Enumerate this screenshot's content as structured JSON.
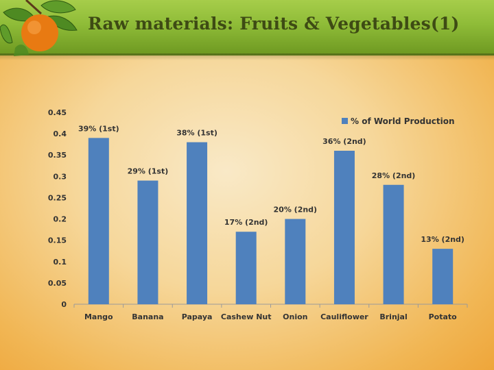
{
  "slide": {
    "title": "Raw materials: Fruits & Vegetables(1)"
  },
  "decoration": {
    "icon": "orange-fruit-icon"
  },
  "colors": {
    "bar": "#4f81bd",
    "title_bar": "#8fbc38",
    "title_text": "#3e4b14"
  },
  "chart_data": {
    "type": "bar",
    "categories": [
      "Mango",
      "Banana",
      "Papaya",
      "Cashew Nut",
      "Onion",
      "Cauliflower",
      "Brinjal",
      "Potato"
    ],
    "series": [
      {
        "name": "% of World Production",
        "values": [
          0.39,
          0.29,
          0.38,
          0.17,
          0.2,
          0.36,
          0.28,
          0.13
        ]
      }
    ],
    "data_labels": [
      "39% (1st)",
      "29% (1st)",
      "38% (1st)",
      "17% (2nd)",
      "20% (2nd)",
      "36% (2nd)",
      "28% (2nd)",
      "13% (2nd)"
    ],
    "y_ticks": [
      "0",
      "0.05",
      "0.1",
      "0.15",
      "0.2",
      "0.25",
      "0.3",
      "0.35",
      "0.4",
      "0.45"
    ],
    "ylim": [
      0,
      0.45
    ],
    "grid": false,
    "legend_position": "top-right",
    "title": "",
    "xlabel": "",
    "ylabel": ""
  }
}
